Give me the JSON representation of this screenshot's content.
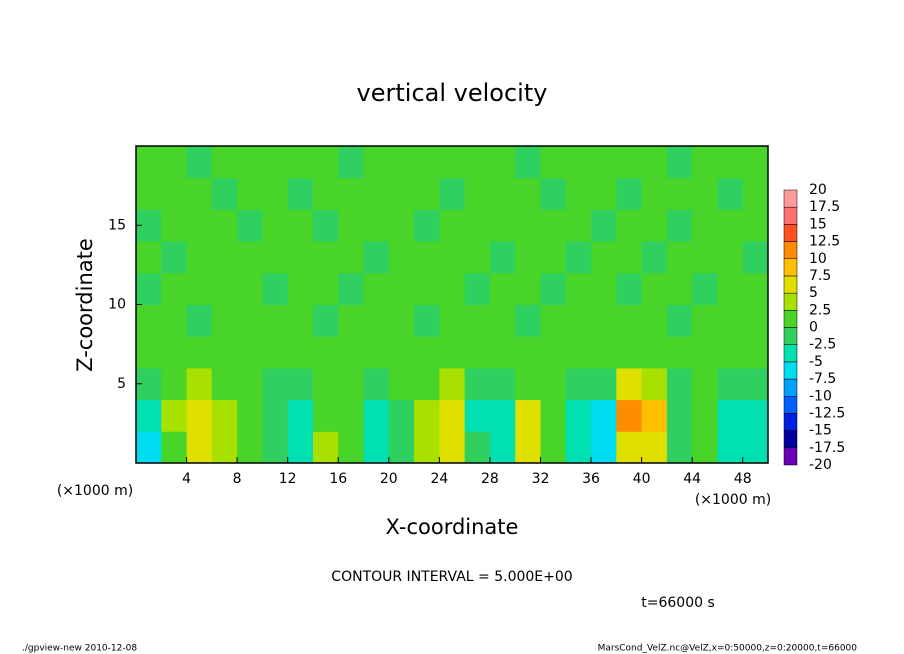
{
  "chart_data": {
    "type": "heatmap",
    "title": "vertical velocity",
    "x_label": "X-coordinate",
    "y_label": "Z-coordinate",
    "x_unit_label": "(×1000 m)",
    "y_unit_label": "(×1000 m)",
    "xlim": [
      0,
      50
    ],
    "ylim": [
      0,
      20
    ],
    "xticks": [
      4,
      8,
      12,
      16,
      20,
      24,
      28,
      32,
      36,
      40,
      44,
      48
    ],
    "yticks": [
      5,
      10,
      15
    ],
    "xbins": [
      0,
      2,
      4,
      6,
      8,
      10,
      12,
      14,
      16,
      18,
      20,
      22,
      24,
      26,
      28,
      30,
      32,
      34,
      36,
      38,
      40,
      42,
      44,
      46,
      48,
      50
    ],
    "ybins": [
      0,
      2,
      4,
      6,
      8,
      10,
      12,
      14,
      16,
      18,
      20
    ],
    "values": [
      [
        -6,
        2,
        6,
        3,
        0,
        -2,
        -4,
        3,
        1,
        -4,
        -1,
        3,
        5,
        -2,
        -5,
        5,
        1,
        -4,
        -6,
        7,
        6,
        -2,
        2,
        -3,
        -4
      ],
      [
        -5,
        3,
        7,
        4,
        0,
        -1,
        -3,
        2,
        0,
        -3,
        -1,
        4,
        5,
        -3,
        -5,
        5,
        1,
        -5,
        -6,
        12,
        9,
        -2,
        2,
        -3,
        -3
      ],
      [
        -1,
        2,
        4,
        2,
        0,
        -1,
        -1,
        1,
        0,
        -1,
        0,
        2,
        3,
        -1,
        -2,
        2,
        1,
        -2,
        -2,
        6,
        4,
        -1,
        1,
        -1,
        -1
      ],
      [
        0,
        1,
        1,
        1,
        0,
        0,
        0,
        0,
        1,
        0,
        0,
        1,
        1,
        0,
        0,
        1,
        1,
        0,
        0,
        2,
        1,
        0,
        0,
        0,
        0
      ],
      [
        1,
        0,
        -1,
        0,
        1,
        0,
        1,
        -1,
        0,
        1,
        0,
        -1,
        0,
        1,
        0,
        -1,
        1,
        0,
        1,
        1,
        0,
        -1,
        0,
        1,
        0
      ],
      [
        -1,
        1,
        0,
        1,
        0,
        -1,
        0,
        1,
        -1,
        0,
        1,
        0,
        1,
        -1,
        1,
        0,
        -1,
        1,
        0,
        -1,
        1,
        0,
        -1,
        0,
        1
      ],
      [
        1,
        -1,
        1,
        0,
        1,
        0,
        1,
        0,
        1,
        -1,
        0,
        1,
        0,
        1,
        -1,
        1,
        0,
        -1,
        1,
        0,
        -1,
        1,
        0,
        1,
        -1
      ],
      [
        -1,
        1,
        0,
        1,
        -1,
        1,
        0,
        -1,
        1,
        0,
        1,
        -1,
        1,
        0,
        1,
        0,
        1,
        0,
        -1,
        1,
        0,
        -1,
        1,
        0,
        1
      ],
      [
        1,
        0,
        1,
        -1,
        0,
        1,
        -1,
        1,
        0,
        1,
        0,
        1,
        -1,
        1,
        0,
        1,
        -1,
        1,
        0,
        -1,
        1,
        0,
        1,
        -1,
        0
      ],
      [
        0,
        1,
        -1,
        1,
        1,
        0,
        1,
        0,
        -1,
        1,
        1,
        0,
        1,
        0,
        1,
        -1,
        0,
        1,
        1,
        0,
        1,
        -1,
        0,
        1,
        1
      ]
    ],
    "levels": [
      -20,
      -17.5,
      -15,
      -12.5,
      -10,
      -7.5,
      -5,
      -2.5,
      0,
      2.5,
      5,
      7.5,
      10,
      12.5,
      15,
      17.5,
      20
    ],
    "colors": [
      "#6a00b8",
      "#0000a0",
      "#0020e0",
      "#0060ff",
      "#00a0ff",
      "#00dcf0",
      "#00e0b0",
      "#30d060",
      "#48d428",
      "#a8e000",
      "#e0e000",
      "#ffc000",
      "#ff8c00",
      "#ff5020",
      "#ff7070",
      "#ff9a9a"
    ],
    "annotations": [
      "CONTOUR INTERVAL = 5.000E+00",
      "t=66000 s"
    ],
    "footer_left": "./gpview-new  2010-12-08",
    "footer_right": "MarsCond_VelZ.nc@VelZ,x=0:50000,z=0:20000,t=66000"
  }
}
